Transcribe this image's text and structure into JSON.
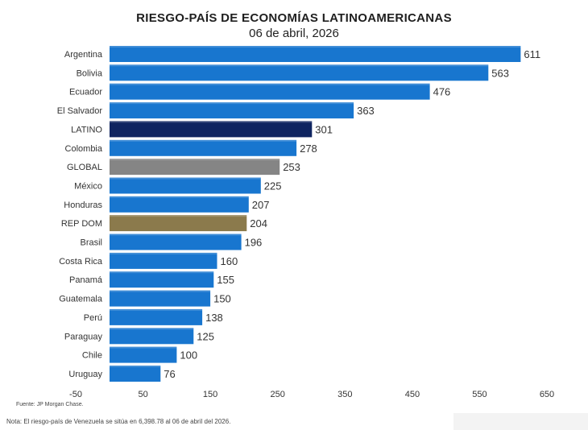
{
  "header": {
    "title": "RIESGO-PAÍS DE ECONOMÍAS LATINOAMERICANAS",
    "subtitle": "06 de abril, 2026"
  },
  "footer": {
    "source": "Fuente: JP Morgan Chase.",
    "note": "Nota: El riesgo-país de Venezuela se sitúa en 6,398.78 al 06 de abril del 2026."
  },
  "colors": {
    "default": "#1876cf",
    "latino": "#0f2460",
    "global": "#858585",
    "repdom": "#8b7a4c"
  },
  "chart_data": {
    "type": "bar",
    "orientation": "horizontal",
    "title": "RIESGO-PAÍS DE ECONOMÍAS LATINOAMERICANAS",
    "subtitle": "06 de abril, 2026",
    "xlabel": "",
    "ylabel": "",
    "xlim": [
      -50,
      650
    ],
    "xticks": [
      -50,
      50,
      150,
      250,
      350,
      450,
      550,
      650
    ],
    "grid": false,
    "categories": [
      "Argentina",
      "Bolivia",
      "Ecuador",
      "El Salvador",
      "LATINO",
      "Colombia",
      "GLOBAL",
      "México",
      "Honduras",
      "REP DOM",
      "Brasil",
      "Costa Rica",
      "Panamá",
      "Guatemala",
      "Perú",
      "Paraguay",
      "Chile",
      "Uruguay"
    ],
    "values": [
      611,
      563,
      476,
      363,
      301,
      278,
      253,
      225,
      207,
      204,
      196,
      160,
      155,
      150,
      138,
      125,
      100,
      76
    ],
    "highlights": {
      "LATINO": "latino",
      "GLOBAL": "global",
      "REP DOM": "repdom"
    }
  }
}
